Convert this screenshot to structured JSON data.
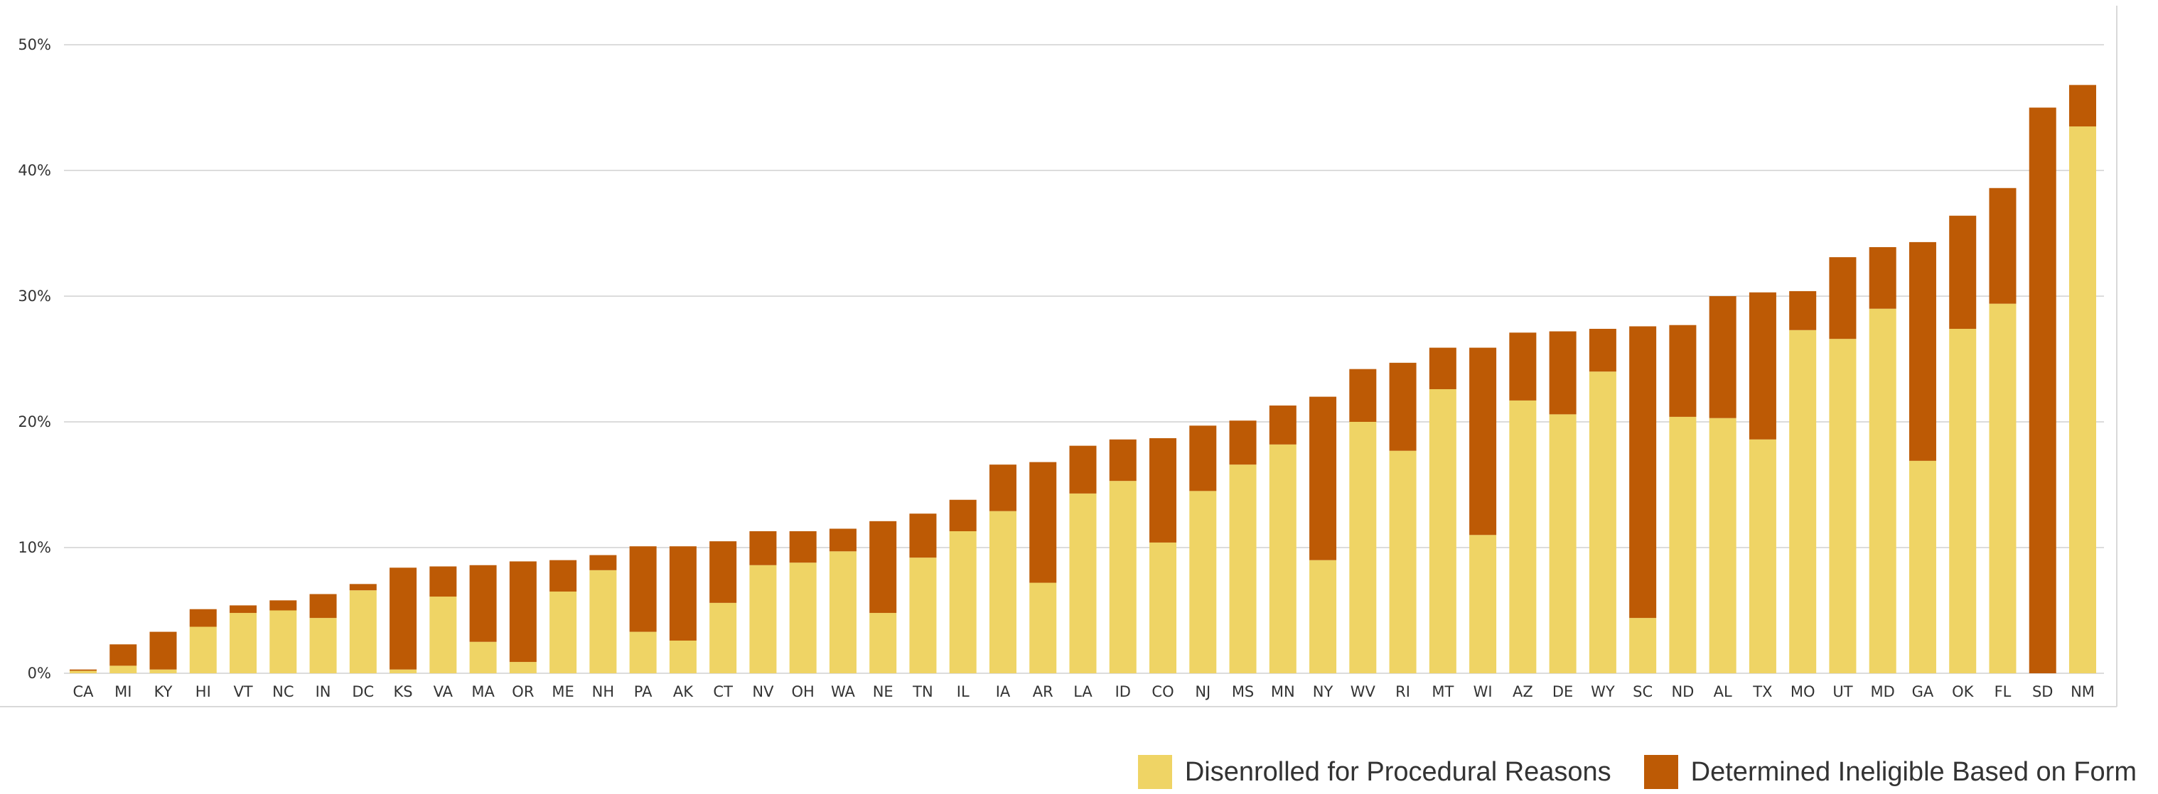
{
  "chart_data": {
    "type": "bar",
    "stacked": true,
    "categories": [
      "CA",
      "MI",
      "KY",
      "HI",
      "VT",
      "NC",
      "IN",
      "DC",
      "KS",
      "VA",
      "MA",
      "OR",
      "ME",
      "NH",
      "PA",
      "AK",
      "CT",
      "NV",
      "OH",
      "WA",
      "NE",
      "TN",
      "IL",
      "IA",
      "AR",
      "LA",
      "ID",
      "CO",
      "NJ",
      "MS",
      "MN",
      "NY",
      "WV",
      "RI",
      "MT",
      "WI",
      "AZ",
      "DE",
      "WY",
      "SC",
      "ND",
      "AL",
      "TX",
      "MO",
      "UT",
      "MD",
      "GA",
      "OK",
      "FL",
      "SD",
      "NM"
    ],
    "series": [
      {
        "name": "Disenrolled for Procedural Reasons",
        "color": "#efd465",
        "values": [
          0.2,
          0.6,
          0.3,
          3.7,
          4.8,
          5.0,
          4.4,
          6.6,
          0.3,
          6.1,
          2.5,
          0.9,
          6.5,
          8.2,
          3.3,
          2.6,
          5.6,
          8.6,
          8.8,
          9.7,
          4.8,
          9.2,
          11.3,
          12.9,
          7.2,
          14.3,
          15.3,
          10.4,
          14.5,
          16.6,
          18.2,
          9.0,
          20.0,
          17.7,
          22.6,
          11.0,
          21.7,
          20.6,
          24.0,
          4.4,
          20.4,
          20.3,
          18.6,
          27.3,
          26.6,
          29.0,
          16.9,
          27.4,
          29.4,
          0.0,
          43.5
        ]
      },
      {
        "name": "Determined Ineligible Based on Form",
        "color": "#bd5a05",
        "values": [
          0.1,
          1.7,
          3.0,
          1.4,
          0.6,
          0.8,
          1.9,
          0.5,
          8.1,
          2.4,
          6.1,
          8.0,
          2.5,
          1.2,
          6.8,
          7.5,
          4.9,
          2.7,
          2.5,
          1.8,
          7.3,
          3.5,
          2.5,
          3.7,
          9.6,
          3.8,
          3.3,
          8.3,
          5.2,
          3.5,
          3.1,
          13.0,
          4.2,
          7.0,
          3.3,
          14.9,
          5.4,
          6.6,
          3.4,
          23.2,
          7.3,
          9.7,
          11.7,
          3.1,
          6.5,
          4.9,
          17.4,
          9.0,
          9.2,
          45.0,
          3.3
        ]
      }
    ],
    "yticks": [
      0,
      10,
      20,
      30,
      40,
      50
    ],
    "ytick_labels": [
      "0%",
      "10%",
      "20%",
      "30%",
      "40%",
      "50%"
    ],
    "ylim": [
      0,
      50
    ],
    "grid": true,
    "legend_position": "bottom-right"
  }
}
